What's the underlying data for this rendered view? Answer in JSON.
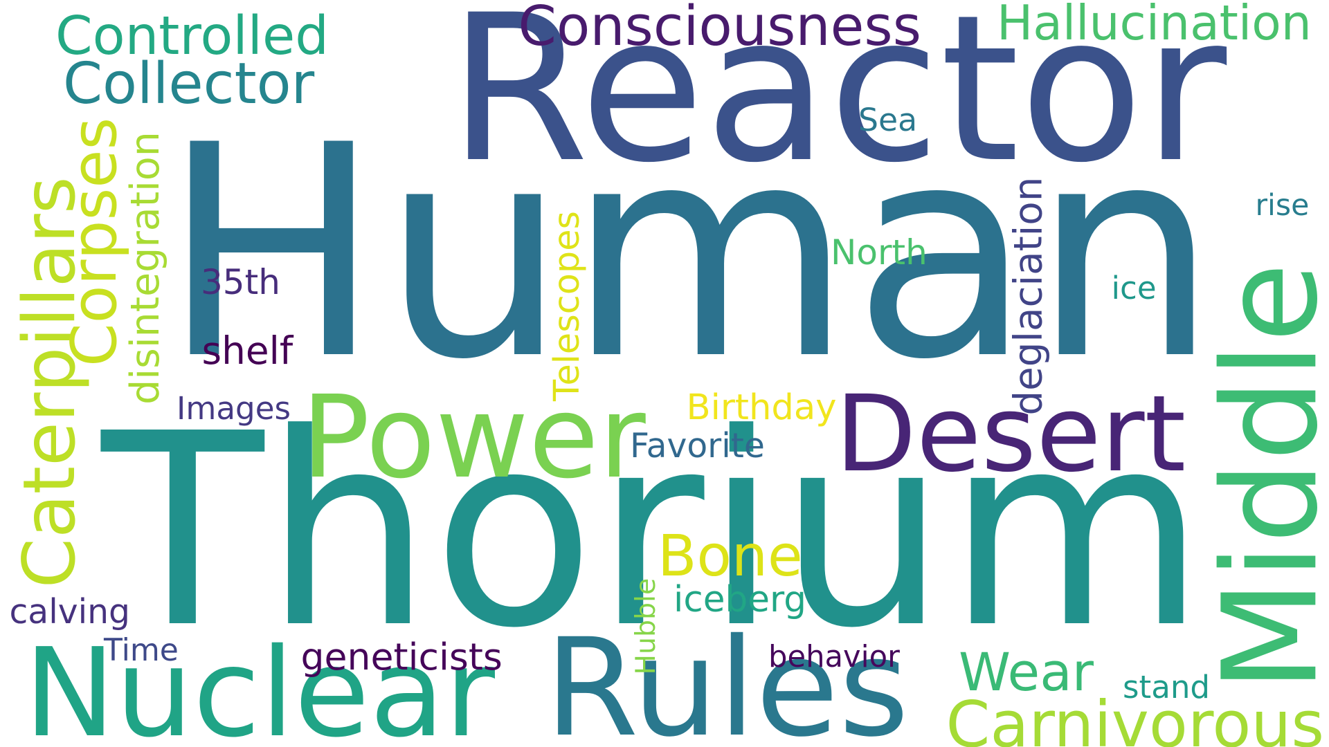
{
  "words": [
    {
      "key": "human",
      "text": "Human",
      "color": "#2c728e"
    },
    {
      "key": "thorium",
      "text": "Thorium",
      "color": "#21918c"
    },
    {
      "key": "reactor",
      "text": "Reactor",
      "color": "#3b528b"
    },
    {
      "key": "nuclear",
      "text": "Nuclear",
      "color": "#20a486"
    },
    {
      "key": "rules",
      "text": "Rules",
      "color": "#2a788e"
    },
    {
      "key": "middle",
      "text": "Middle",
      "color": "#3dbc74"
    },
    {
      "key": "desert",
      "text": "Desert",
      "color": "#482576"
    },
    {
      "key": "power",
      "text": "Power",
      "color": "#7ad151"
    },
    {
      "key": "caterpillars",
      "text": "Caterpillars",
      "color": "#bddf26"
    },
    {
      "key": "corpses",
      "text": "Corpses",
      "color": "#c8e020"
    },
    {
      "key": "controlled",
      "text": "Controlled",
      "color": "#23a983"
    },
    {
      "key": "collector",
      "text": "Collector",
      "color": "#25858e"
    },
    {
      "key": "consciousness",
      "text": "Consciousness",
      "color": "#481b6d"
    },
    {
      "key": "hallucination",
      "text": "Hallucination",
      "color": "#4ac16d"
    },
    {
      "key": "carnivorous",
      "text": "Carnivorous",
      "color": "#a5db36"
    },
    {
      "key": "wear",
      "text": "Wear",
      "color": "#3aba76"
    },
    {
      "key": "bone",
      "text": "Bone",
      "color": "#dde318"
    },
    {
      "key": "disintegration",
      "text": "disintegration",
      "color": "#a8db34"
    },
    {
      "key": "telescopes",
      "text": "Telescopes",
      "color": "#dfe318"
    },
    {
      "key": "deglaciation",
      "text": "deglaciation",
      "color": "#414487"
    },
    {
      "key": "hubble",
      "text": "Hubble",
      "color": "#86d549"
    },
    {
      "key": "sea",
      "text": "Sea",
      "color": "#2a788e"
    },
    {
      "key": "rise",
      "text": "rise",
      "color": "#287d8e"
    },
    {
      "key": "north",
      "text": "North",
      "color": "#4ac16d"
    },
    {
      "key": "ice",
      "text": "ice",
      "color": "#1f988b"
    },
    {
      "key": "35th",
      "text": "35th",
      "color": "#472d7b"
    },
    {
      "key": "shelf",
      "text": "shelf",
      "color": "#440154"
    },
    {
      "key": "images",
      "text": "Images",
      "color": "#443983"
    },
    {
      "key": "birthday",
      "text": "Birthday",
      "color": "#f1e51d"
    },
    {
      "key": "favorite",
      "text": "Favorite",
      "color": "#31688e"
    },
    {
      "key": "iceberg",
      "text": "iceberg",
      "color": "#21a685"
    },
    {
      "key": "calving",
      "text": "calving",
      "color": "#46327e"
    },
    {
      "key": "time",
      "text": "Time",
      "color": "#3e4989"
    },
    {
      "key": "geneticists",
      "text": "geneticists",
      "color": "#450559"
    },
    {
      "key": "behavior",
      "text": "behavior",
      "color": "#46085c"
    },
    {
      "key": "stand",
      "text": "stand",
      "color": "#1e9b8a"
    }
  ]
}
